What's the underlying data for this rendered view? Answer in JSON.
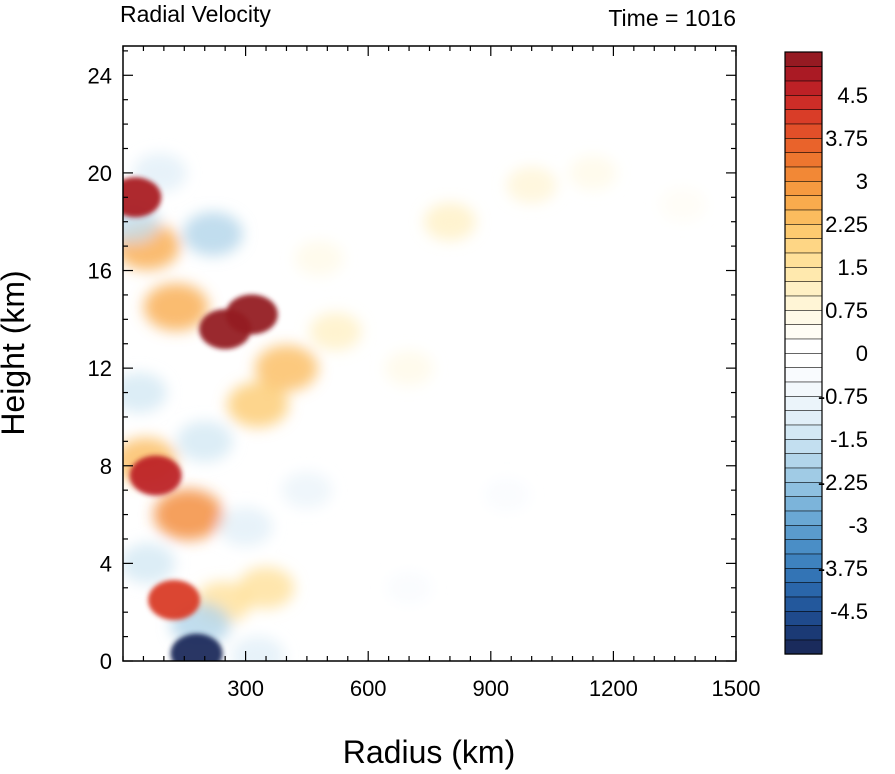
{
  "chart_data": {
    "type": "heatmap",
    "title": "Radial Velocity",
    "time_label": "Time = 1016",
    "xlabel": "Radius (km)",
    "ylabel": "Height (km)",
    "xlim": [
      0,
      1500
    ],
    "ylim": [
      0,
      25.2
    ],
    "x_ticks": [
      300,
      600,
      900,
      1200,
      1500
    ],
    "x_tick_labels": [
      "300",
      "600",
      "900",
      "1200",
      "1500"
    ],
    "y_ticks": [
      0,
      4,
      8,
      12,
      16,
      20,
      24
    ],
    "y_tick_labels": [
      "0",
      "4",
      "8",
      "12",
      "16",
      "20",
      "24"
    ],
    "grid": false,
    "colorbar": {
      "levels_min": -5.25,
      "levels_step": 0.25,
      "levels_count": 42,
      "colors": [
        "#1a2b5c",
        "#1b3a75",
        "#1f4a8c",
        "#23589c",
        "#2a66aa",
        "#3374b5",
        "#3e82be",
        "#4a8ec6",
        "#5a9bcd",
        "#6aa8d4",
        "#7cb4da",
        "#8ec0e0",
        "#a0cbe5",
        "#b2d5ea",
        "#c3dff0",
        "#d3e8f4",
        "#e1eff8",
        "#ebf4fa",
        "#f3f8fc",
        "#f9fbfe",
        "#ffffff",
        "#ffffff",
        "#fffdf5",
        "#fffae8",
        "#fff5d6",
        "#fff0c4",
        "#ffe9ae",
        "#ffe099",
        "#fed685",
        "#fdca70",
        "#fbbc5e",
        "#f9ab4d",
        "#f69a40",
        "#f28836",
        "#ee762f",
        "#e9632b",
        "#e24f29",
        "#d93d28",
        "#cd2d27",
        "#bd2126",
        "#aa1a24",
        "#951a22"
      ],
      "tick_values": [
        4.5,
        3.75,
        3,
        2.25,
        1.5,
        0.75,
        0,
        -0.75,
        -1.5,
        -2.25,
        -3,
        -3.75,
        -4.5
      ],
      "tick_labels": [
        "4.5",
        "3.75",
        "3",
        "2.25",
        "1.5",
        "0.75",
        "0",
        "-0.75",
        "-1.5",
        "-2.25",
        "-3",
        "-3.75",
        "-4.5"
      ]
    },
    "features": [
      {
        "r": 315,
        "z": 14.2,
        "value": 5.5
      },
      {
        "r": 250,
        "z": 13.6,
        "value": 5.5
      },
      {
        "r": 400,
        "z": 12.0,
        "value": 2.4
      },
      {
        "r": 330,
        "z": 10.5,
        "value": 2.2
      },
      {
        "r": 520,
        "z": 13.5,
        "value": 1.0
      },
      {
        "r": 700,
        "z": 12.0,
        "value": 0.6
      },
      {
        "r": 800,
        "z": 18.0,
        "value": 1.0
      },
      {
        "r": 1000,
        "z": 19.5,
        "value": 0.8
      },
      {
        "r": 1150,
        "z": 20.0,
        "value": 0.5
      },
      {
        "r": 1370,
        "z": 18.7,
        "value": 0.4
      },
      {
        "r": 480,
        "z": 16.5,
        "value": 0.6
      },
      {
        "r": 30,
        "z": 19.0,
        "value": 4.8
      },
      {
        "r": 60,
        "z": 17.0,
        "value": 2.6
      },
      {
        "r": 130,
        "z": 14.5,
        "value": 2.6
      },
      {
        "r": 55,
        "z": 8.2,
        "value": 2.4
      },
      {
        "r": 80,
        "z": 7.6,
        "value": 4.5
      },
      {
        "r": 160,
        "z": 6.0,
        "value": 3.2
      },
      {
        "r": 125,
        "z": 2.5,
        "value": 4.0
      },
      {
        "r": 245,
        "z": 2.4,
        "value": 1.6
      },
      {
        "r": 350,
        "z": 3.0,
        "value": 1.6
      },
      {
        "r": 20,
        "z": 18.0,
        "value": -1.6
      },
      {
        "r": 90,
        "z": 20.0,
        "value": -1.2
      },
      {
        "r": 220,
        "z": 17.5,
        "value": -2.0
      },
      {
        "r": 200,
        "z": 9.0,
        "value": -1.5
      },
      {
        "r": 40,
        "z": 11.0,
        "value": -1.4
      },
      {
        "r": 300,
        "z": 5.5,
        "value": -1.2
      },
      {
        "r": 450,
        "z": 7.0,
        "value": -0.8
      },
      {
        "r": 60,
        "z": 4.0,
        "value": -1.4
      },
      {
        "r": 190,
        "z": 1.5,
        "value": -2.0
      },
      {
        "r": 180,
        "z": 0.3,
        "value": -5.2
      },
      {
        "r": 330,
        "z": 0.2,
        "value": -1.2
      },
      {
        "r": 700,
        "z": 3.0,
        "value": -0.3
      },
      {
        "r": 940,
        "z": 6.8,
        "value": -0.3
      }
    ]
  }
}
